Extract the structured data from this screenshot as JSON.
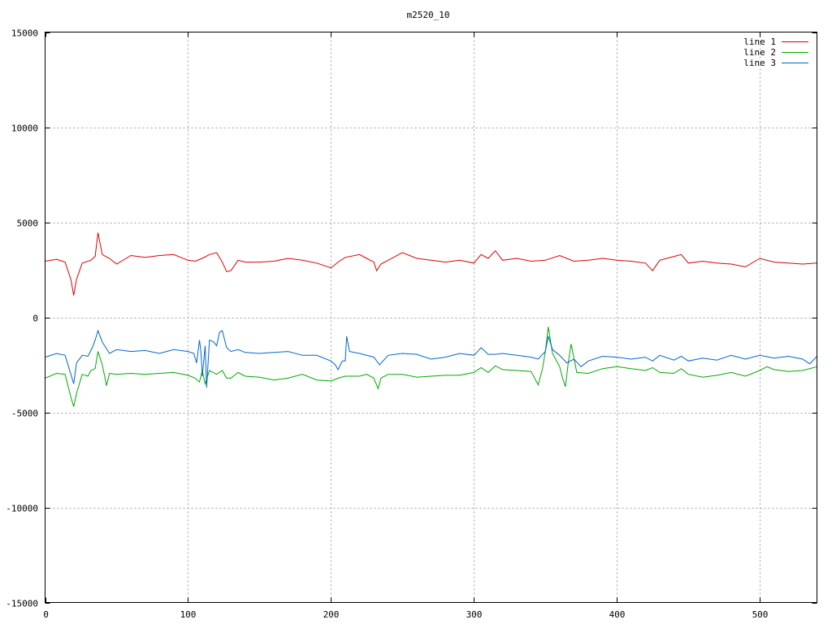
{
  "chart_data": {
    "type": "line",
    "title": "m2520_10",
    "xlabel": "",
    "ylabel": "",
    "xlim": [
      0,
      540
    ],
    "ylim": [
      -15000,
      15000
    ],
    "xticks": [
      0,
      100,
      200,
      300,
      400,
      500
    ],
    "yticks": [
      -15000,
      -10000,
      -5000,
      0,
      5000,
      10000,
      15000
    ],
    "grid": true,
    "legend_position": "top-right",
    "series": [
      {
        "name": "line 1",
        "color": "#dd0000",
        "x": [
          0,
          8,
          14,
          18,
          20,
          22,
          26,
          32,
          35,
          37,
          40,
          45,
          50,
          60,
          70,
          80,
          90,
          100,
          105,
          110,
          115,
          120,
          124,
          127,
          130,
          135,
          140,
          150,
          160,
          170,
          180,
          190,
          200,
          205,
          210,
          220,
          225,
          230,
          232,
          235,
          240,
          250,
          260,
          270,
          280,
          290,
          300,
          305,
          310,
          315,
          320,
          330,
          340,
          350,
          360,
          370,
          380,
          390,
          400,
          410,
          420,
          425,
          430,
          440,
          445,
          450,
          460,
          470,
          480,
          490,
          500,
          510,
          520,
          530,
          540
        ],
        "y": [
          2950,
          3050,
          2900,
          2000,
          1150,
          2000,
          2850,
          3000,
          3200,
          4450,
          3300,
          3100,
          2800,
          3250,
          3150,
          3250,
          3300,
          3000,
          2950,
          3100,
          3300,
          3400,
          2900,
          2400,
          2450,
          3000,
          2900,
          2900,
          2950,
          3100,
          3000,
          2850,
          2600,
          2900,
          3150,
          3300,
          3100,
          2900,
          2450,
          2800,
          3000,
          3400,
          3100,
          3000,
          2900,
          3000,
          2850,
          3300,
          3100,
          3500,
          3000,
          3100,
          2950,
          3000,
          3250,
          2950,
          3000,
          3100,
          3000,
          2950,
          2850,
          2450,
          3000,
          3200,
          3300,
          2850,
          2950,
          2850,
          2800,
          2650,
          3100,
          2900,
          2850,
          2800,
          2850
        ]
      },
      {
        "name": "line 2",
        "color": "#00aa00",
        "x": [
          0,
          8,
          14,
          18,
          20,
          22,
          26,
          30,
          32,
          35,
          37,
          40,
          43,
          45,
          50,
          60,
          70,
          80,
          90,
          100,
          105,
          108,
          110,
          112,
          115,
          120,
          124,
          127,
          130,
          135,
          140,
          150,
          160,
          170,
          180,
          190,
          200,
          205,
          210,
          220,
          225,
          230,
          233,
          235,
          240,
          250,
          260,
          270,
          280,
          290,
          300,
          305,
          310,
          315,
          320,
          330,
          340,
          345,
          348,
          350,
          352,
          355,
          360,
          362,
          364,
          366,
          368,
          372,
          380,
          390,
          400,
          410,
          420,
          425,
          430,
          440,
          445,
          450,
          460,
          470,
          480,
          490,
          500,
          505,
          510,
          520,
          530,
          540
        ],
        "y": [
          -3200,
          -2950,
          -3000,
          -4200,
          -4700,
          -4000,
          -3000,
          -3100,
          -2800,
          -2700,
          -1800,
          -2500,
          -3600,
          -2950,
          -3000,
          -2950,
          -3000,
          -2950,
          -2900,
          -3050,
          -3200,
          -3400,
          -2800,
          -3500,
          -2800,
          -3000,
          -2800,
          -3200,
          -3200,
          -2900,
          -3100,
          -3150,
          -3300,
          -3200,
          -3000,
          -3300,
          -3350,
          -3200,
          -3100,
          -3100,
          -3000,
          -3200,
          -3750,
          -3200,
          -3000,
          -3000,
          -3150,
          -3100,
          -3050,
          -3050,
          -2900,
          -2650,
          -2900,
          -2550,
          -2750,
          -2800,
          -2850,
          -3550,
          -2700,
          -1800,
          -500,
          -1900,
          -2600,
          -3200,
          -3650,
          -2400,
          -1400,
          -2900,
          -2950,
          -2700,
          -2600,
          -2700,
          -2800,
          -2650,
          -2900,
          -2950,
          -2700,
          -3000,
          -3150,
          -3050,
          -2900,
          -3100,
          -2800,
          -2600,
          -2750,
          -2850,
          -2800,
          -2600
        ]
      },
      {
        "name": "line 3",
        "color": "#0066cc",
        "x": [
          0,
          8,
          14,
          18,
          20,
          22,
          26,
          30,
          33,
          35,
          37,
          40,
          45,
          50,
          60,
          70,
          80,
          90,
          100,
          104,
          106,
          108,
          109,
          110,
          112,
          113,
          115,
          118,
          120,
          122,
          124,
          127,
          130,
          135,
          140,
          150,
          160,
          170,
          180,
          190,
          200,
          203,
          205,
          208,
          210,
          211,
          213,
          220,
          230,
          234,
          240,
          250,
          260,
          270,
          280,
          290,
          300,
          305,
          310,
          315,
          320,
          330,
          340,
          345,
          350,
          352,
          355,
          360,
          365,
          370,
          375,
          380,
          390,
          400,
          410,
          420,
          425,
          430,
          440,
          445,
          450,
          460,
          470,
          480,
          490,
          500,
          510,
          520,
          530,
          535,
          540
        ],
        "y": [
          -2100,
          -1900,
          -2000,
          -3000,
          -3500,
          -2400,
          -2000,
          -2050,
          -1600,
          -1200,
          -700,
          -1300,
          -1900,
          -1700,
          -1800,
          -1750,
          -1900,
          -1700,
          -1800,
          -1900,
          -2400,
          -1200,
          -1800,
          -3100,
          -1500,
          -3700,
          -1200,
          -1300,
          -1500,
          -800,
          -700,
          -1600,
          -1800,
          -1700,
          -1850,
          -1900,
          -1850,
          -1800,
          -2000,
          -2000,
          -2300,
          -2500,
          -2750,
          -2300,
          -2300,
          -1000,
          -1800,
          -1900,
          -2100,
          -2500,
          -2000,
          -1900,
          -1950,
          -2200,
          -2100,
          -1900,
          -2000,
          -1600,
          -1950,
          -1950,
          -1900,
          -2000,
          -2100,
          -2200,
          -1800,
          -1000,
          -1700,
          -2000,
          -2400,
          -2200,
          -2600,
          -2300,
          -2050,
          -2100,
          -2200,
          -2100,
          -2300,
          -2000,
          -2250,
          -2050,
          -2300,
          -2150,
          -2250,
          -2000,
          -2200,
          -2000,
          -2150,
          -2050,
          -2200,
          -2450,
          -2050
        ]
      }
    ]
  }
}
